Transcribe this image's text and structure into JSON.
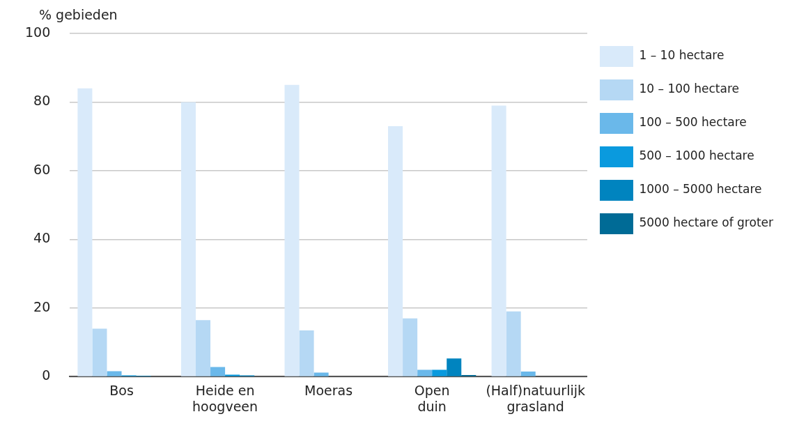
{
  "chart_data": {
    "type": "bar",
    "ylabel": "% gebieden",
    "categories": [
      "Bos",
      "Heide en hoogveen",
      "Moeras",
      "Open duin",
      "(Half)natuurlijk grasland"
    ],
    "series": [
      {
        "name": "1 – 10 hectare",
        "color": "#d9eafa",
        "values": [
          84,
          80,
          85,
          73,
          79
        ]
      },
      {
        "name": "10 – 100 hectare",
        "color": "#b5d8f4",
        "values": [
          14,
          16.5,
          13.5,
          17,
          19
        ]
      },
      {
        "name": "100 – 500 hectare",
        "color": "#6ab8ea",
        "values": [
          1.6,
          2.8,
          1.2,
          2,
          1.5
        ]
      },
      {
        "name": "500 – 1000 hectare",
        "color": "#0a9ade",
        "values": [
          0.4,
          0.6,
          0,
          2,
          0
        ]
      },
      {
        "name": "1000 – 5000 hectare",
        "color": "#0084bf",
        "values": [
          0.3,
          0.4,
          0,
          5.3,
          0
        ]
      },
      {
        "name": "5000 hectare of groter",
        "color": "#006b96",
        "values": [
          0,
          0,
          0,
          0.5,
          0
        ]
      }
    ],
    "ylim": [
      0,
      100
    ],
    "yticks": [
      0,
      20,
      40,
      60,
      80,
      100
    ],
    "grid": "y",
    "legend": "right"
  }
}
